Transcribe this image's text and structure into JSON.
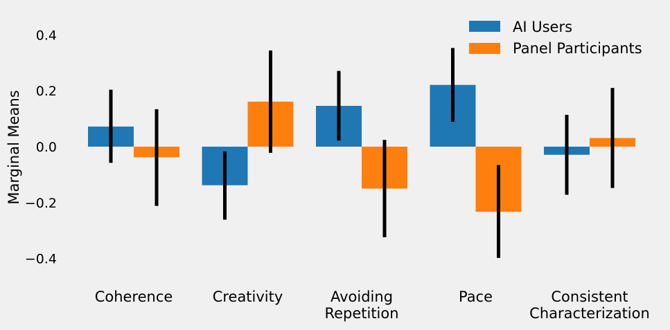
{
  "chart_data": {
    "type": "bar",
    "title": "",
    "xlabel": "",
    "ylabel": "Marginal Means",
    "ylim": [
      -0.5,
      0.48
    ],
    "yticks": [
      -0.4,
      -0.2,
      0.0,
      0.2,
      0.4
    ],
    "ytick_labels": [
      "−0.4",
      "−0.2",
      "0.0",
      "0.2",
      "0.4"
    ],
    "grid": false,
    "legend_position": "top-right",
    "categories": [
      [
        "Coherence"
      ],
      [
        "Creativity"
      ],
      [
        "Avoiding",
        "Repetition"
      ],
      [
        "Pace"
      ],
      [
        "Consistent",
        "Characterization"
      ]
    ],
    "series": [
      {
        "name": "AI Users",
        "color": "#1f77b4",
        "values": [
          0.072,
          -0.138,
          0.146,
          0.221,
          -0.029
        ],
        "err_low": [
          -0.058,
          -0.261,
          0.022,
          0.089,
          -0.172
        ],
        "err_high": [
          0.204,
          -0.017,
          0.271,
          0.353,
          0.114
        ]
      },
      {
        "name": "Panel Participants",
        "color": "#ff7f0e",
        "values": [
          -0.038,
          0.161,
          -0.15,
          -0.233,
          0.031
        ],
        "err_low": [
          -0.212,
          -0.022,
          -0.324,
          -0.398,
          -0.148
        ],
        "err_high": [
          0.134,
          0.344,
          0.024,
          -0.066,
          0.21
        ]
      }
    ]
  }
}
